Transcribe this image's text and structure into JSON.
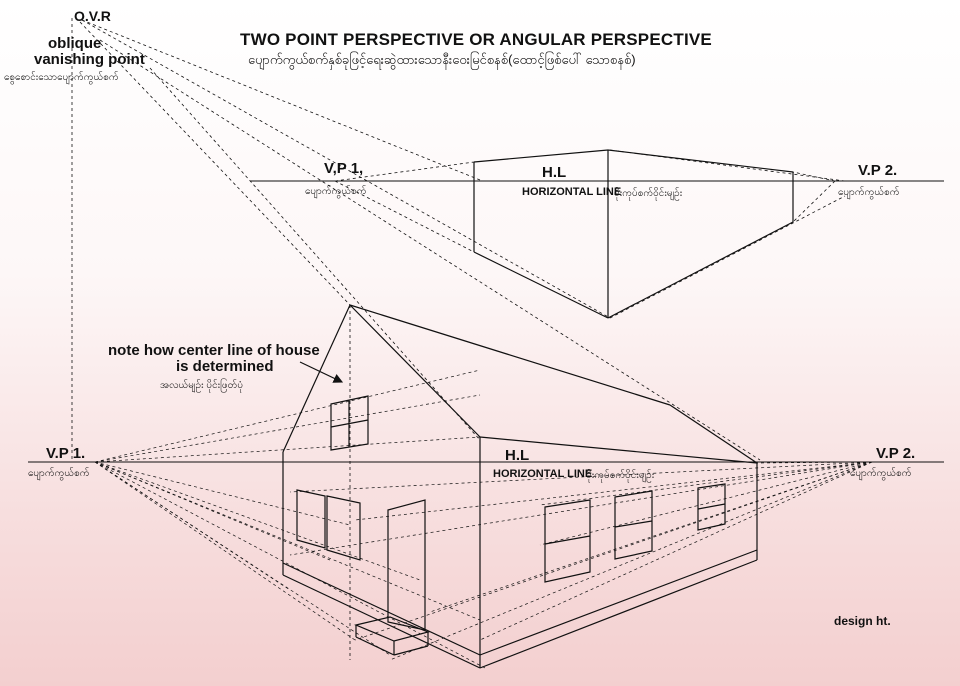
{
  "header": {
    "title": "TWO POINT PERSPECTIVE OR ANGULAR PERSPECTIVE",
    "subtitle": "ပျောက်ကွယ်စက်နှစ်ခုဖြင့်ရေးဆွဲထားသောနီးဝေးမြင်စနစ်(ထောင့်ဖြစ်ပေါ် သောစနစ်)"
  },
  "ovr": {
    "code": "O.V.R",
    "name_line1": "oblique",
    "name_line2": "vanishing point",
    "name_mm": "စွေစောင်းသောပျောက်ကွယ်စက်"
  },
  "top_diagram": {
    "vp1_label": "V,P 1,",
    "vp1_mm": "ပျောက်ကွယ်စက်",
    "hl_label": "H.L",
    "horizon_text": "HORIZONTAL LINE",
    "horizon_mm": "မိုးကုပ်စက်ဝိုင်းမျဉ်း",
    "vp2_label": "V.P 2.",
    "vp2_mm": "ပျောက်ကွယ်စက်"
  },
  "house_diagram": {
    "vp1_label": "V.P 1.",
    "vp1_mm": "ပျောက်ကွယ်စက်",
    "hl_label": "H.L",
    "horizon_text": "HORIZONTAL LINE",
    "horizon_mm": "မိုးကုပ်စက်ဝိုင်းမျဉ်း",
    "vp2_label": "V.P 2.",
    "vp2_mm": "ပျောက်ကွယ်စက်"
  },
  "note": {
    "line1": "note how center line of house",
    "line2": "is determined",
    "mm": "အလယ်မျဉ်း ပိုင်းဖြတ်ပုံ"
  },
  "credit": "design ht."
}
